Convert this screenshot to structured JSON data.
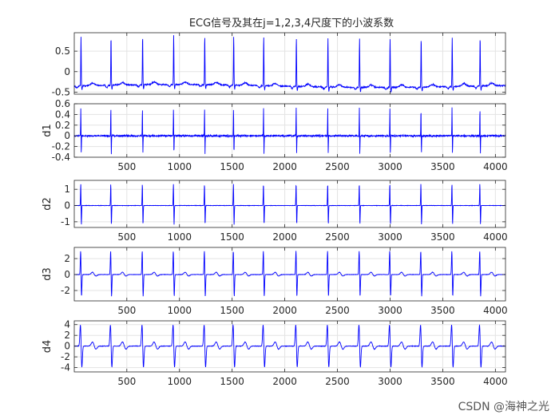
{
  "figure_title": "ECG信号及其在j=1,2,3,4尺度下的小波系数",
  "watermark": "CSDN @海神之光",
  "colors": {
    "line": "#0000ff",
    "axes": "#262626",
    "grid": "#e3e3e3",
    "background": "#ffffff"
  },
  "chart_data": [
    {
      "type": "line",
      "title": "ECG信号及其在j=1,2,3,4尺度下的小波系数",
      "ylabel": "",
      "xlim": [
        1,
        4096
      ],
      "ylim": [
        -0.55,
        0.95
      ],
      "yticks": [
        "0.5",
        "0",
        "-0.5"
      ],
      "xticks": [],
      "grid": true,
      "series": [
        {
          "baseline": -0.35,
          "r_peaks": [
            65,
            350,
            650,
            945,
            1240,
            1515,
            1800,
            2110,
            2410,
            2710,
            3000,
            3295,
            3590,
            3855
          ],
          "r_peak_value": 0.85,
          "s_trough_value": -0.45
        }
      ]
    },
    {
      "type": "line",
      "ylabel": "d1",
      "xlim": [
        1,
        4096
      ],
      "ylim": [
        -0.4,
        0.6
      ],
      "yticks": [
        "0.6",
        "0.4",
        "0.2",
        "0",
        "-0.2",
        "-0.4"
      ],
      "xticks": [
        "500",
        "1000",
        "1500",
        "2000",
        "2500",
        "3000",
        "3500",
        "4000"
      ],
      "grid": true,
      "series": [
        {
          "baseline": 0,
          "r_peaks": [
            65,
            350,
            650,
            945,
            1240,
            1515,
            1800,
            2110,
            2410,
            2710,
            3000,
            3295,
            3590,
            3855
          ],
          "max": 0.55,
          "min": -0.38
        }
      ]
    },
    {
      "type": "line",
      "ylabel": "d2",
      "xlim": [
        1,
        4096
      ],
      "ylim": [
        -1.35,
        1.55
      ],
      "yticks": [
        "1",
        "0",
        "-1"
      ],
      "xticks": [
        "500",
        "1000",
        "1500",
        "2000",
        "2500",
        "3000",
        "3500",
        "4000"
      ],
      "grid": true,
      "series": [
        {
          "baseline": 0,
          "r_peaks": [
            65,
            350,
            650,
            945,
            1240,
            1515,
            1800,
            2110,
            2410,
            2710,
            3000,
            3295,
            3590,
            3855
          ],
          "max": 1.45,
          "min": -1.3
        }
      ]
    },
    {
      "type": "line",
      "ylabel": "d3",
      "xlim": [
        1,
        4096
      ],
      "ylim": [
        -3.3,
        3.4
      ],
      "yticks": [
        "2",
        "0",
        "-2"
      ],
      "xticks": [
        "500",
        "1000",
        "1500",
        "2000",
        "2500",
        "3000",
        "3500",
        "4000"
      ],
      "grid": true,
      "series": [
        {
          "baseline": 0,
          "r_peaks": [
            65,
            350,
            650,
            945,
            1240,
            1515,
            1800,
            2110,
            2410,
            2710,
            3000,
            3295,
            3590,
            3855
          ],
          "max": 3.2,
          "min": -3.0
        }
      ]
    },
    {
      "type": "line",
      "ylabel": "d4",
      "xlim": [
        1,
        4096
      ],
      "ylim": [
        -4.8,
        4.7
      ],
      "yticks": [
        "4",
        "2",
        "0",
        "-2",
        "-4"
      ],
      "xticks": [
        "500",
        "1000",
        "1500",
        "2000",
        "2500",
        "3000",
        "3500",
        "4000"
      ],
      "grid": true,
      "series": [
        {
          "baseline": 0,
          "r_peaks": [
            65,
            350,
            650,
            945,
            1240,
            1515,
            1800,
            2110,
            2410,
            2710,
            3000,
            3295,
            3590,
            3855
          ],
          "max": 4.3,
          "min": -4.3
        }
      ]
    }
  ]
}
